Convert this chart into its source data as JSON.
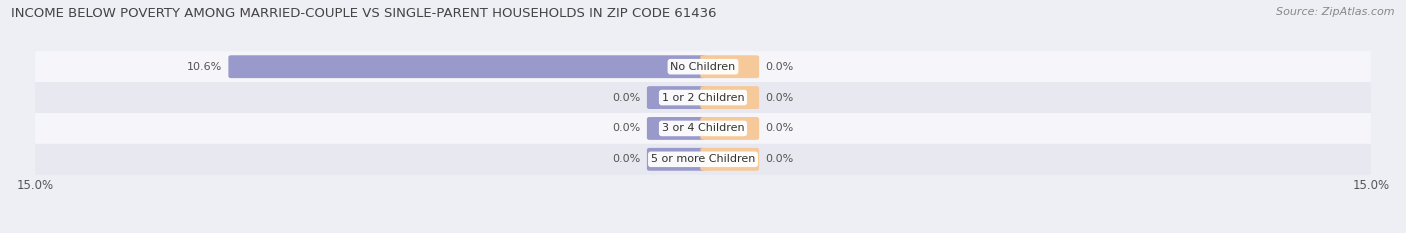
{
  "title": "INCOME BELOW POVERTY AMONG MARRIED-COUPLE VS SINGLE-PARENT HOUSEHOLDS IN ZIP CODE 61436",
  "source": "Source: ZipAtlas.com",
  "categories": [
    "No Children",
    "1 or 2 Children",
    "3 or 4 Children",
    "5 or more Children"
  ],
  "married_values": [
    10.6,
    0.0,
    0.0,
    0.0
  ],
  "single_values": [
    0.0,
    0.0,
    0.0,
    0.0
  ],
  "married_color": "#9999cc",
  "single_color": "#f5c99a",
  "axis_max": 15.0,
  "bg_color": "#eeeef5",
  "row_bg_colors": [
    "#f5f5fa",
    "#e8e8f0"
  ],
  "title_fontsize": 9.5,
  "source_fontsize": 8,
  "label_fontsize": 8,
  "cat_fontsize": 8,
  "legend_fontsize": 8.5,
  "axis_label_fontsize": 8.5,
  "min_bar_width": 1.2
}
